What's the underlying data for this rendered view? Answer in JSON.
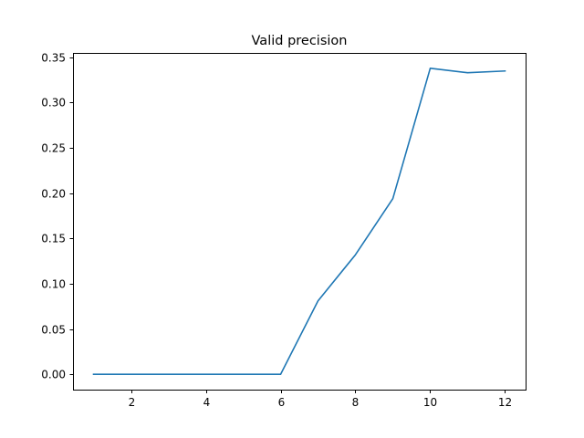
{
  "chart_data": {
    "type": "line",
    "title": "Valid precision",
    "xlabel": "",
    "ylabel": "",
    "xlim": [
      0.45,
      12.55
    ],
    "ylim": [
      -0.0169,
      0.3549
    ],
    "xticks": [
      2,
      4,
      6,
      8,
      10,
      12
    ],
    "yticks": [
      0.0,
      0.05,
      0.1,
      0.15,
      0.2,
      0.25,
      0.3,
      0.35
    ],
    "ytick_labels": [
      "0.00",
      "0.05",
      "0.10",
      "0.15",
      "0.20",
      "0.25",
      "0.30",
      "0.35"
    ],
    "grid": false,
    "series": [
      {
        "color": "#1f77b4",
        "x": [
          1,
          2,
          3,
          4,
          5,
          6,
          7,
          8,
          9,
          10,
          11,
          12
        ],
        "y": [
          0.0,
          0.0,
          0.0,
          0.0,
          0.0,
          0.0,
          0.081,
          0.132,
          0.194,
          0.338,
          0.333,
          0.335
        ]
      }
    ]
  }
}
